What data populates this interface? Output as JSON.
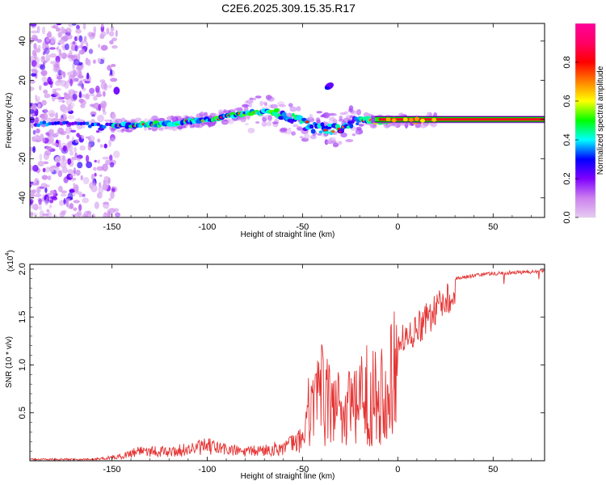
{
  "figure": {
    "title": "C2E6.2025.309.15.35.R17"
  },
  "chart_data": [
    {
      "type": "heatmap",
      "xlabel": "Height of straight line (km)",
      "ylabel": "Frequency (Hz)",
      "xlim": [
        -193,
        77
      ],
      "ylim": [
        -50,
        49
      ],
      "xticks": [
        -150,
        -100,
        -50,
        0,
        50
      ],
      "yticks": [
        -40,
        -20,
        0,
        20,
        40
      ],
      "grid": false,
      "ridge_center": [
        {
          "x": -193,
          "y": -2
        },
        {
          "x": -160,
          "y": -3
        },
        {
          "x": -140,
          "y": -3
        },
        {
          "x": -120,
          "y": -2
        },
        {
          "x": -100,
          "y": 0
        },
        {
          "x": -80,
          "y": 3
        },
        {
          "x": -70,
          "y": 4
        },
        {
          "x": -60,
          "y": 3
        },
        {
          "x": -50,
          "y": -2
        },
        {
          "x": -40,
          "y": -5
        },
        {
          "x": -30,
          "y": -4
        },
        {
          "x": -20,
          "y": 0
        },
        {
          "x": -10,
          "y": -1
        },
        {
          "x": 0,
          "y": 0
        },
        {
          "x": 10,
          "y": -1
        },
        {
          "x": 20,
          "y": 0
        },
        {
          "x": 77,
          "y": 0
        }
      ],
      "extra_blob": {
        "x": -36,
        "y": 17
      }
    },
    {
      "type": "line",
      "xlabel": "Height of straight line (km)",
      "ylabel": "SNR (10 * v/v)",
      "y_multiplier": "(x10",
      "y_multiplier_exp": "4",
      "xlim": [
        -193,
        77
      ],
      "ylim": [
        0,
        2.05
      ],
      "xticks": [
        -150,
        -100,
        -50,
        0,
        50
      ],
      "yticks": [
        0.5,
        1.0,
        1.5,
        2.0
      ],
      "grid": false,
      "series": [
        {
          "color": "#e53333",
          "envelope": [
            {
              "x": -193,
              "y": 0.02
            },
            {
              "x": -160,
              "y": 0.02
            },
            {
              "x": -145,
              "y": 0.06
            },
            {
              "x": -135,
              "y": 0.15
            },
            {
              "x": -120,
              "y": 0.12
            },
            {
              "x": -100,
              "y": 0.2
            },
            {
              "x": -80,
              "y": 0.12
            },
            {
              "x": -60,
              "y": 0.18
            },
            {
              "x": -50,
              "y": 0.3
            },
            {
              "x": -44,
              "y": 0.9
            },
            {
              "x": -38,
              "y": 0.95
            },
            {
              "x": -30,
              "y": 0.75
            },
            {
              "x": -20,
              "y": 0.85
            },
            {
              "x": -12,
              "y": 1.0
            },
            {
              "x": -5,
              "y": 1.2
            },
            {
              "x": 0,
              "y": 1.4
            },
            {
              "x": 10,
              "y": 1.55
            },
            {
              "x": 20,
              "y": 1.75
            },
            {
              "x": 30,
              "y": 1.92
            },
            {
              "x": 45,
              "y": 1.97
            },
            {
              "x": 77,
              "y": 2.0
            }
          ]
        }
      ]
    }
  ],
  "colorbar": {
    "label": "Normalized spectral amplitude",
    "ticks": [
      "0.0",
      "0.2",
      "0.4",
      "0.6",
      "0.8"
    ],
    "stops": [
      "#e6ccf2",
      "#cc80ee",
      "#8000ff",
      "#0000ff",
      "#00ffff",
      "#00ff00",
      "#ffff00",
      "#ff8000",
      "#ff0000",
      "#ff0066",
      "#ff0099"
    ]
  }
}
